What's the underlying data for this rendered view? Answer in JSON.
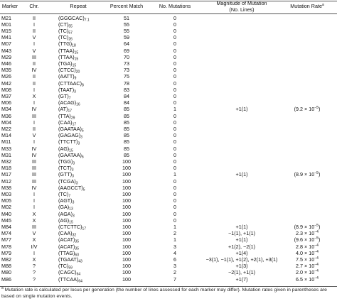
{
  "table": {
    "header": {
      "marker": "Marker",
      "chr": "Chr.",
      "repeat": "Repeat",
      "percent": "Percent Match",
      "mutations": "No. Mutations",
      "magnitude": [
        "Magnitude of Mutation",
        "(No. Lines)"
      ],
      "rate": "Mutation Rate",
      "rate_note": "a"
    },
    "rows": [
      {
        "marker": "M21",
        "chr": "II",
        "repeat": {
          "unit": "(GGGCAC)",
          "count": "7.1"
        },
        "percent": 51,
        "mutations": 0
      },
      {
        "marker": "M01",
        "chr": "I",
        "repeat": {
          "unit": "(CT)",
          "count": "55"
        },
        "percent": 55,
        "mutations": 0
      },
      {
        "marker": "M15",
        "chr": "II",
        "repeat": {
          "unit": "(TC)",
          "count": "57"
        },
        "percent": 55,
        "mutations": 0
      },
      {
        "marker": "M41",
        "chr": "V",
        "repeat": {
          "unit": "(TC)",
          "count": "26"
        },
        "percent": 59,
        "mutations": 0
      },
      {
        "marker": "M07",
        "chr": "I",
        "repeat": {
          "unit": "(TTG)",
          "count": "18"
        },
        "percent": 64,
        "mutations": 0
      },
      {
        "marker": "M43",
        "chr": "V",
        "repeat": {
          "unit": "(TTAA)",
          "count": "15"
        },
        "percent": 69,
        "mutations": 0
      },
      {
        "marker": "M29",
        "chr": "III",
        "repeat": {
          "unit": "(TTAA)",
          "count": "15"
        },
        "percent": 70,
        "mutations": 0
      },
      {
        "marker": "M46",
        "chr": "II",
        "repeat": {
          "unit": "(TGA)",
          "count": "15"
        },
        "percent": 73,
        "mutations": 0
      },
      {
        "marker": "M35",
        "chr": "IV",
        "repeat": {
          "unit": "(CTCC)",
          "count": "20"
        },
        "percent": 73,
        "mutations": 0
      },
      {
        "marker": "M26",
        "chr": "II",
        "repeat": {
          "unit": "(AATT)",
          "count": "9"
        },
        "percent": 75,
        "mutations": 0
      },
      {
        "marker": "M42",
        "chr": "II",
        "repeat": {
          "unit": "(CTTAAC)",
          "count": "8"
        },
        "percent": 78,
        "mutations": 0
      },
      {
        "marker": "M08",
        "chr": "I",
        "repeat": {
          "unit": "(TAAT)",
          "count": "3"
        },
        "percent": 83,
        "mutations": 0
      },
      {
        "marker": "M37",
        "chr": "X",
        "repeat": {
          "unit": "(GT)",
          "count": "7"
        },
        "percent": 84,
        "mutations": 0
      },
      {
        "marker": "M06",
        "chr": "I",
        "repeat": {
          "unit": "(ACAG)",
          "count": "16"
        },
        "percent": 84,
        "mutations": 0
      },
      {
        "marker": "M34",
        "chr": "IV",
        "repeat": {
          "unit": "(AT)",
          "count": "17"
        },
        "percent": 85,
        "mutations": 1,
        "magnitude": "+1(1)",
        "rate": {
          "base": "(9.2 × 10",
          "exp": "−5",
          "close": ")"
        }
      },
      {
        "marker": "M36",
        "chr": "III",
        "repeat": {
          "unit": "(TTA)",
          "count": "29"
        },
        "percent": 85,
        "mutations": 0
      },
      {
        "marker": "M04",
        "chr": "I",
        "repeat": {
          "unit": "(CAA)",
          "count": "17"
        },
        "percent": 85,
        "mutations": 0
      },
      {
        "marker": "M22",
        "chr": "II",
        "repeat": {
          "unit": "(GAATAA)",
          "count": "5"
        },
        "percent": 85,
        "mutations": 0
      },
      {
        "marker": "M14",
        "chr": "V",
        "repeat": {
          "unit": "(GAGAG)",
          "count": "3"
        },
        "percent": 85,
        "mutations": 0
      },
      {
        "marker": "M11",
        "chr": "I",
        "repeat": {
          "unit": "(TTCTT)",
          "count": "3"
        },
        "percent": 85,
        "mutations": 0
      },
      {
        "marker": "M33",
        "chr": "IV",
        "repeat": {
          "unit": "(AG)",
          "count": "15"
        },
        "percent": 85,
        "mutations": 0
      },
      {
        "marker": "M31",
        "chr": "IV",
        "repeat": {
          "unit": "(GAATAA)",
          "count": "6"
        },
        "percent": 85,
        "mutations": 0
      },
      {
        "marker": "M32",
        "chr": "III",
        "repeat": {
          "unit": "(TGG)",
          "count": "3"
        },
        "percent": 100,
        "mutations": 0
      },
      {
        "marker": "M18",
        "chr": "III",
        "repeat": {
          "unit": "(TCT)",
          "count": "3"
        },
        "percent": 100,
        "mutations": 0
      },
      {
        "marker": "M17",
        "chr": "III",
        "repeat": {
          "unit": "(GTT)",
          "count": "3"
        },
        "percent": 100,
        "mutations": 1,
        "magnitude": "+1(1)",
        "rate": {
          "base": "(8.9 × 10",
          "exp": "−5",
          "close": ")"
        }
      },
      {
        "marker": "M12",
        "chr": "III",
        "repeat": {
          "unit": "(TCGA)",
          "count": "3"
        },
        "percent": 100,
        "mutations": 0
      },
      {
        "marker": "M38",
        "chr": "IV",
        "repeat": {
          "unit": "(AAGCCT)",
          "count": "5"
        },
        "percent": 100,
        "mutations": 0
      },
      {
        "marker": "M03",
        "chr": "I",
        "repeat": {
          "unit": "(TC)",
          "count": "7"
        },
        "percent": 100,
        "mutations": 0
      },
      {
        "marker": "M05",
        "chr": "I",
        "repeat": {
          "unit": "(AGT)",
          "count": "3"
        },
        "percent": 100,
        "mutations": 0
      },
      {
        "marker": "M02",
        "chr": "I",
        "repeat": {
          "unit": "(GA)",
          "count": "13"
        },
        "percent": 100,
        "mutations": 0
      },
      {
        "marker": "M40",
        "chr": "X",
        "repeat": {
          "unit": "(AGA)",
          "count": "3"
        },
        "percent": 100,
        "mutations": 0
      },
      {
        "marker": "M45",
        "chr": "X",
        "repeat": {
          "unit": "(AG)",
          "count": "15"
        },
        "percent": 100,
        "mutations": 0
      },
      {
        "marker": "M84",
        "chr": "III",
        "repeat": {
          "unit": "(CTCTTC)",
          "count": "17"
        },
        "percent": 100,
        "mutations": 1,
        "magnitude": "+1(1)",
        "rate": {
          "base": "(8.9 × 10",
          "exp": "−5",
          "close": ")"
        }
      },
      {
        "marker": "M74",
        "chr": "V",
        "repeat": {
          "unit": "(CAA)",
          "count": "32"
        },
        "percent": 100,
        "mutations": 2,
        "magnitude": "−1(1), +1(1)",
        "rate": {
          "base": "2.3 × 10",
          "exp": "−4"
        }
      },
      {
        "marker": "M77",
        "chr": "X",
        "repeat": {
          "unit": "(ACAT)",
          "count": "35"
        },
        "percent": 100,
        "mutations": 1,
        "magnitude": "+1(1)",
        "rate": {
          "base": "(9.6 × 10",
          "exp": "−5",
          "close": ")"
        }
      },
      {
        "marker": "M78",
        "chr": "I/V",
        "repeat": {
          "unit": "(ACAT)",
          "count": "35"
        },
        "percent": 100,
        "mutations": 3,
        "magnitude": "+1(2), −2(1)",
        "rate": {
          "base": "2.8 × 10",
          "exp": "−4"
        }
      },
      {
        "marker": "M79",
        "chr": "I",
        "repeat": {
          "unit": "(TTAG)",
          "count": "60"
        },
        "percent": 100,
        "mutations": 4,
        "magnitude": "+1(4)",
        "rate": {
          "base": "4.0 × 10",
          "exp": "−4"
        }
      },
      {
        "marker": "M82",
        "chr": "X",
        "repeat": {
          "unit": "(TGAAT)",
          "count": "43"
        },
        "percent": 100,
        "mutations": 6,
        "magnitude": "−3(1), −1(1), +1(2), +2(1), +3(1)",
        "rate": {
          "base": "7.5 × 10",
          "exp": "−4"
        }
      },
      {
        "marker": "M88",
        "chr": "?",
        "repeat": {
          "unit": "(TC)",
          "count": "59"
        },
        "percent": 100,
        "mutations": 3,
        "magnitude": "+1(3)",
        "rate": {
          "base": "2.7 × 10",
          "exp": "−4"
        }
      },
      {
        "marker": "M80",
        "chr": "?",
        "repeat": {
          "unit": "(CAGC)",
          "count": "64"
        },
        "percent": 100,
        "mutations": 2,
        "magnitude": "−2(1), +1(1)",
        "rate": {
          "base": "2.0 × 10",
          "exp": "−4"
        }
      },
      {
        "marker": "M86",
        "chr": "?",
        "repeat": {
          "unit": "(TTCAA)",
          "count": "64"
        },
        "percent": 100,
        "mutations": 7,
        "magnitude": "+1(7)",
        "rate": {
          "base": "6.5 × 10",
          "exp": "−4"
        }
      }
    ],
    "footnote": {
      "mark": "a",
      "text": "Mutation rate is calculated per locus per generation (the number of lines assessed for each marker may differ). Mutation rates given in parentheses are based on single mutation events."
    }
  }
}
